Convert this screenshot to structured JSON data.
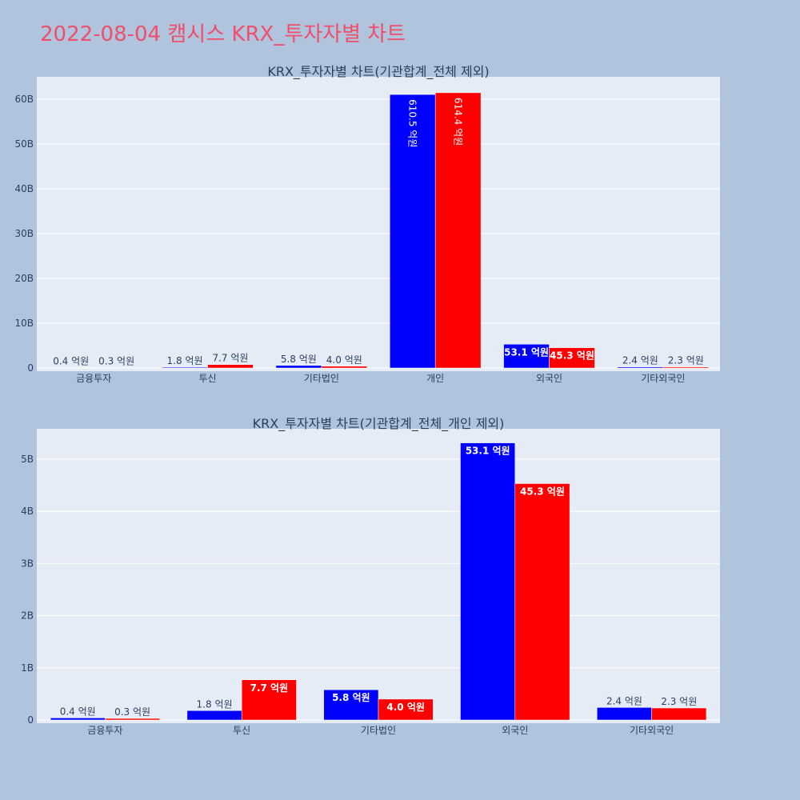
{
  "title": "2022-08-04 캠시스 KRX_투자자별 차트",
  "colors": {
    "series_a": "#0000ff",
    "series_b": "#ff0000",
    "plot_bg": "#e5ecf6",
    "page_bg": "#b0c4de",
    "title": "#ef4f6b"
  },
  "chart_data": [
    {
      "type": "bar",
      "title": "KRX_투자자별 차트(기관합계_전체 제외)",
      "categories": [
        "금융투자",
        "투신",
        "기타법인",
        "개인",
        "외국인",
        "기타외국인"
      ],
      "series": [
        {
          "values": [
            40000000,
            180000000,
            580000000,
            61050000000,
            5310000000,
            240000000
          ],
          "labels": [
            "0.4 억원",
            "1.8 억원",
            "5.8 억원",
            "610.5 억원",
            "53.1 억원",
            "2.4 억원"
          ]
        },
        {
          "values": [
            30000000,
            770000000,
            400000000,
            61440000000,
            4530000000,
            230000000
          ],
          "labels": [
            "0.3 억원",
            "7.7 억원",
            "4.0 억원",
            "614.4 억원",
            "45.3 억원",
            "2.3 억원"
          ]
        }
      ],
      "yticks": [
        0,
        10000000000,
        20000000000,
        30000000000,
        40000000000,
        50000000000,
        60000000000
      ],
      "ytick_labels": [
        "0",
        "10B",
        "20B",
        "30B",
        "40B",
        "50B",
        "60B"
      ],
      "ylim": [
        0,
        65000000000
      ]
    },
    {
      "type": "bar",
      "title": "KRX_투자자별 차트(기관합계_전체_개인 제외)",
      "categories": [
        "금융투자",
        "투신",
        "기타법인",
        "외국인",
        "기타외국인"
      ],
      "series": [
        {
          "values": [
            40000000,
            180000000,
            580000000,
            5310000000,
            240000000
          ],
          "labels": [
            "0.4 억원",
            "1.8 억원",
            "5.8 억원",
            "53.1 억원",
            "2.4 억원"
          ]
        },
        {
          "values": [
            30000000,
            770000000,
            400000000,
            4530000000,
            230000000
          ],
          "labels": [
            "0.3 억원",
            "7.7 억원",
            "4.0 억원",
            "45.3 억원",
            "2.3 억원"
          ]
        }
      ],
      "yticks": [
        0,
        1000000000,
        2000000000,
        3000000000,
        4000000000,
        5000000000
      ],
      "ytick_labels": [
        "0",
        "1B",
        "2B",
        "3B",
        "4B",
        "5B"
      ],
      "ylim": [
        0,
        5580000000
      ]
    }
  ]
}
